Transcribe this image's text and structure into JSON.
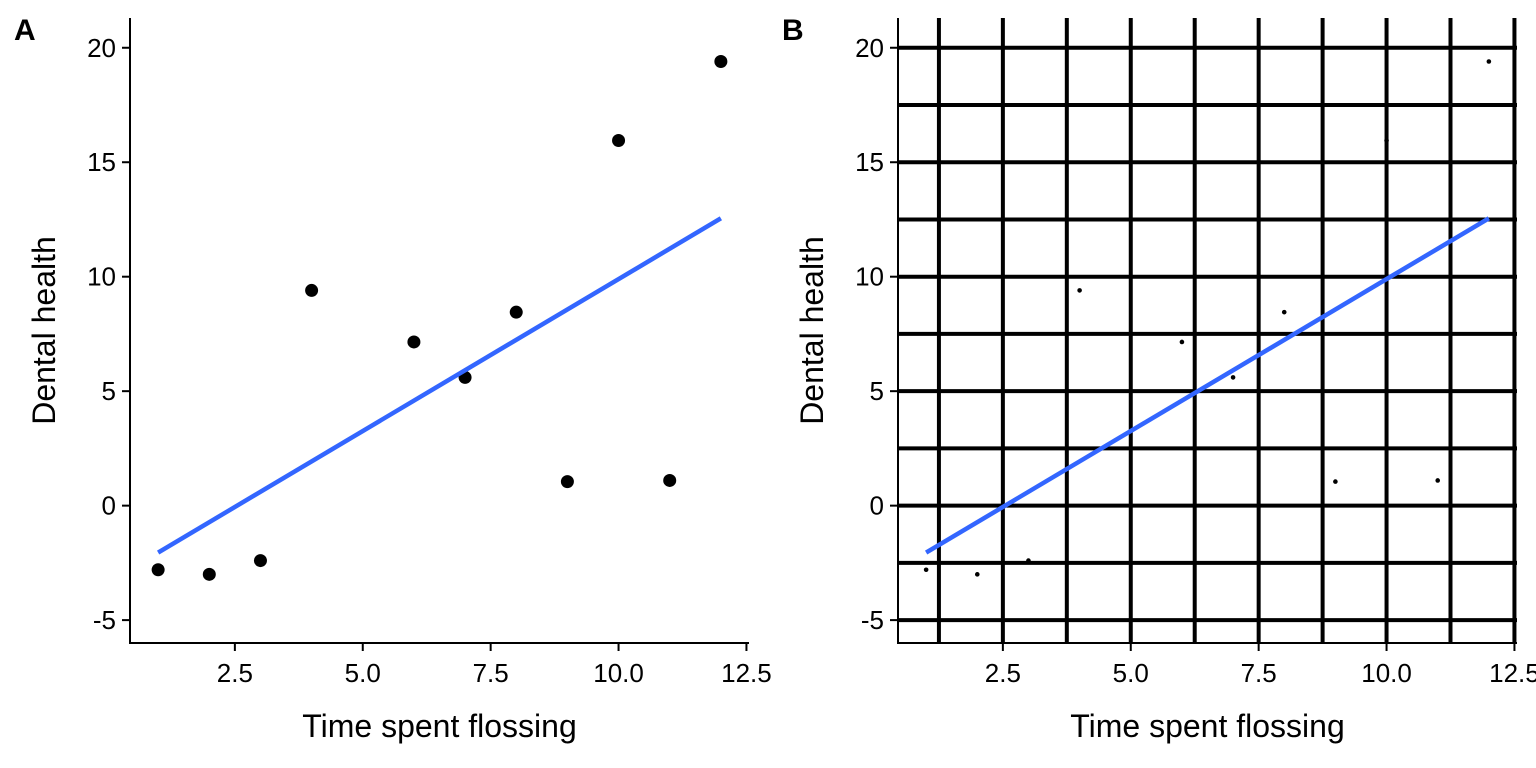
{
  "chart_data": [
    {
      "type": "scatter",
      "panel_label": "A",
      "xlabel": "Time spent flossing",
      "ylabel": "Dental health",
      "xlim": [
        0.45,
        12.55
      ],
      "ylim": [
        -6.0,
        21.3
      ],
      "xticks": [
        2.5,
        5.0,
        7.5,
        10.0,
        12.5
      ],
      "xtick_labels": [
        "2.5",
        "5.0",
        "7.5",
        "10.0",
        "12.5"
      ],
      "yticks": [
        -5,
        0,
        5,
        10,
        15,
        20
      ],
      "ytick_labels": [
        "-5",
        "0",
        "5",
        "10",
        "15",
        "20"
      ],
      "grid": false,
      "point_style": "large",
      "points": [
        {
          "x": 1,
          "y": -2.8
        },
        {
          "x": 2,
          "y": -3.0
        },
        {
          "x": 3,
          "y": -2.4
        },
        {
          "x": 4,
          "y": 9.4
        },
        {
          "x": 6,
          "y": 7.15
        },
        {
          "x": 7,
          "y": 5.6
        },
        {
          "x": 8,
          "y": 8.45
        },
        {
          "x": 9,
          "y": 1.05
        },
        {
          "x": 10,
          "y": 15.95
        },
        {
          "x": 11,
          "y": 1.1
        },
        {
          "x": 12,
          "y": 19.4
        }
      ],
      "fit_line": {
        "x": [
          1,
          12
        ],
        "y": [
          -2.05,
          12.55
        ],
        "color": "#3366FF"
      }
    },
    {
      "type": "scatter",
      "panel_label": "B",
      "xlabel": "Time spent flossing",
      "ylabel": "Dental health",
      "xlim": [
        0.45,
        12.55
      ],
      "ylim": [
        -6.0,
        21.3
      ],
      "xticks": [
        2.5,
        5.0,
        7.5,
        10.0,
        12.5
      ],
      "xtick_labels": [
        "2.5",
        "5.0",
        "7.5",
        "10.0",
        "12.5"
      ],
      "yticks": [
        -5,
        0,
        5,
        10,
        15,
        20
      ],
      "ytick_labels": [
        "-5",
        "0",
        "5",
        "10",
        "15",
        "20"
      ],
      "grid": true,
      "grid_x": [
        1.25,
        2.5,
        3.75,
        5.0,
        6.25,
        7.5,
        8.75,
        10.0,
        11.25,
        12.5
      ],
      "grid_y": [
        -5,
        -2.5,
        0,
        2.5,
        5,
        7.5,
        10,
        12.5,
        15,
        17.5,
        20
      ],
      "point_style": "small",
      "points": [
        {
          "x": 1,
          "y": -2.8
        },
        {
          "x": 2,
          "y": -3.0
        },
        {
          "x": 3,
          "y": -2.4
        },
        {
          "x": 4,
          "y": 9.4
        },
        {
          "x": 6,
          "y": 7.15
        },
        {
          "x": 7,
          "y": 5.6
        },
        {
          "x": 8,
          "y": 8.45
        },
        {
          "x": 9,
          "y": 1.05
        },
        {
          "x": 10,
          "y": 15.95
        },
        {
          "x": 11,
          "y": 1.1
        },
        {
          "x": 12,
          "y": 19.4
        }
      ],
      "fit_line": {
        "x": [
          1,
          12
        ],
        "y": [
          -2.05,
          12.55
        ],
        "color": "#3366FF"
      }
    }
  ]
}
